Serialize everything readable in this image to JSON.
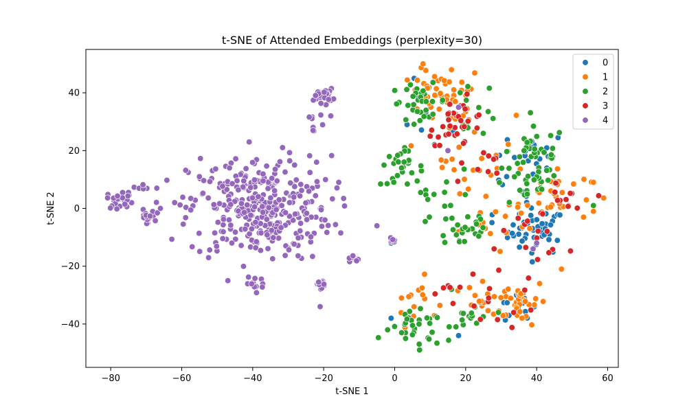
{
  "chart_data": {
    "type": "scatter",
    "title": "t-SNE of Attended Embeddings (perplexity=30)",
    "xlabel": "t-SNE 1",
    "ylabel": "t-SNE 2",
    "xlim": [
      -87,
      63
    ],
    "ylim": [
      -55,
      55
    ],
    "xticks": [
      -80,
      -60,
      -40,
      -20,
      0,
      20,
      40,
      60
    ],
    "yticks": [
      -40,
      -20,
      0,
      20,
      40
    ],
    "grid": false,
    "legend_position": "top-right",
    "colors": {
      "0": "#1f77b4",
      "1": "#ff7f0e",
      "2": "#2ca02c",
      "3": "#d62728",
      "4": "#9467bd"
    },
    "series": [
      {
        "name": "0",
        "clusters": [
          {
            "center": [
              40,
              -8
            ],
            "spread": [
              4,
              4
            ],
            "count": 45
          },
          {
            "center": [
              40,
              20
            ],
            "spread": [
              4,
              3
            ],
            "count": 15
          },
          {
            "center": [
              34,
              -35
            ],
            "spread": [
              3,
              3
            ],
            "count": 12
          },
          {
            "center": [
              8,
              30
            ],
            "spread": [
              4,
              6
            ],
            "count": 8
          },
          {
            "center": [
              30,
              5
            ],
            "spread": [
              6,
              8
            ],
            "count": 10
          }
        ],
        "points": [
          [
            -1,
            -38
          ],
          [
            18,
            -44
          ],
          [
            -1,
            -12
          ],
          [
            0,
            -11
          ]
        ]
      },
      {
        "name": "1",
        "clusters": [
          {
            "center": [
              11,
              40
            ],
            "spread": [
              3,
              4
            ],
            "count": 30
          },
          {
            "center": [
              15,
              38
            ],
            "spread": [
              5,
              6
            ],
            "count": 25
          },
          {
            "center": [
              35,
              -32
            ],
            "spread": [
              4,
              4
            ],
            "count": 35
          },
          {
            "center": [
              6,
              -32
            ],
            "spread": [
              3,
              4
            ],
            "count": 15
          },
          {
            "center": [
              25,
              -32
            ],
            "spread": [
              4,
              3
            ],
            "count": 12
          },
          {
            "center": [
              45,
              5
            ],
            "spread": [
              5,
              5
            ],
            "count": 30
          },
          {
            "center": [
              22,
              20
            ],
            "spread": [
              6,
              7
            ],
            "count": 20
          },
          {
            "center": [
              30,
              -5
            ],
            "spread": [
              6,
              8
            ],
            "count": 20
          }
        ],
        "points": [
          [
            8,
            50
          ],
          [
            56,
            9
          ],
          [
            56,
            -1
          ],
          [
            47,
            -21
          ],
          [
            16,
            48
          ]
        ]
      },
      {
        "name": "2",
        "clusters": [
          {
            "center": [
              7,
              37
            ],
            "spread": [
              4,
              3
            ],
            "count": 30
          },
          {
            "center": [
              2,
              14
            ],
            "spread": [
              3,
              3
            ],
            "count": 25
          },
          {
            "center": [
              20,
              -7
            ],
            "spread": [
              4,
              4
            ],
            "count": 25
          },
          {
            "center": [
              40,
              20
            ],
            "spread": [
              4,
              4
            ],
            "count": 30
          },
          {
            "center": [
              37,
              8
            ],
            "spread": [
              5,
              4
            ],
            "count": 25
          },
          {
            "center": [
              6,
              -42
            ],
            "spread": [
              4,
              3
            ],
            "count": 30
          },
          {
            "center": [
              22,
              -38
            ],
            "spread": [
              3,
              3
            ],
            "count": 15
          },
          {
            "center": [
              14,
              4
            ],
            "spread": [
              5,
              5
            ],
            "count": 15
          },
          {
            "center": [
              20,
              35
            ],
            "spread": [
              5,
              5
            ],
            "count": 15
          }
        ],
        "points": [
          [
            -3,
            15
          ],
          [
            7,
            -49
          ],
          [
            56,
            1
          ],
          [
            -2,
            -42
          ],
          [
            16,
            -28
          ]
        ]
      },
      {
        "name": "3",
        "clusters": [
          {
            "center": [
              18,
              30
            ],
            "spread": [
              4,
              4
            ],
            "count": 30
          },
          {
            "center": [
              40,
              -8
            ],
            "spread": [
              4,
              4
            ],
            "count": 15
          },
          {
            "center": [
              48,
              2
            ],
            "spread": [
              3,
              3
            ],
            "count": 10
          },
          {
            "center": [
              22,
              15
            ],
            "spread": [
              5,
              5
            ],
            "count": 10
          },
          {
            "center": [
              30,
              -30
            ],
            "spread": [
              5,
              5
            ],
            "count": 10
          },
          {
            "center": [
              15,
              -30
            ],
            "spread": [
              5,
              5
            ],
            "count": 8
          }
        ],
        "points": [
          [
            -34,
            0
          ],
          [
            10,
            25
          ],
          [
            28,
            -14
          ]
        ]
      },
      {
        "name": "4",
        "clusters": [
          {
            "center": [
              -38,
              0
            ],
            "spread": [
              10,
              9
            ],
            "count": 340
          },
          {
            "center": [
              -20,
              39
            ],
            "spread": [
              1.3,
              1.2
            ],
            "count": 28
          },
          {
            "center": [
              -77,
              3
            ],
            "spread": [
              2,
              1.5
            ],
            "count": 25
          },
          {
            "center": [
              -70,
              -3
            ],
            "spread": [
              1.2,
              1.2
            ],
            "count": 18
          },
          {
            "center": [
              -71,
              7
            ],
            "spread": [
              0.8,
              0.8
            ],
            "count": 6
          },
          {
            "center": [
              -21,
              -26
            ],
            "spread": [
              1.2,
              0.8
            ],
            "count": 14
          },
          {
            "center": [
              -38,
              -26
            ],
            "spread": [
              2,
              1
            ],
            "count": 10
          },
          {
            "center": [
              -12,
              -18
            ],
            "spread": [
              1,
              1
            ],
            "count": 8
          },
          {
            "center": [
              -1,
              -11
            ],
            "spread": [
              0.5,
              0.5
            ],
            "count": 6
          },
          {
            "center": [
              -22,
              32
            ],
            "spread": [
              1.5,
              2
            ],
            "count": 6
          }
        ],
        "points": [
          [
            -66,
            0
          ],
          [
            -67,
            7
          ],
          [
            -62,
            2
          ],
          [
            -23,
            28
          ],
          [
            -23,
            27
          ],
          [
            -18,
            32
          ],
          [
            -41,
            23
          ],
          [
            -22,
            16
          ],
          [
            -5,
            -6
          ],
          [
            -47,
            -25
          ],
          [
            -55,
            11
          ],
          [
            -21,
            -34
          ],
          [
            40,
            -12
          ],
          [
            39,
            -14
          ],
          [
            18,
            35
          ],
          [
            15,
            20
          ]
        ]
      }
    ]
  }
}
